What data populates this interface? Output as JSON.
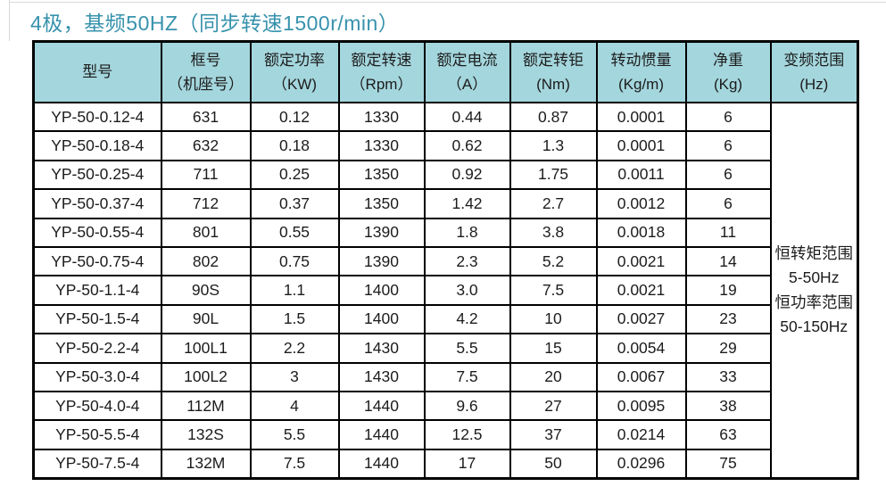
{
  "title": "4极，基频50HZ（同步转速1500r/min）",
  "colors": {
    "title_accent": "#3792ad",
    "header_bg": "#a4d6dd",
    "border": "#000000",
    "cell_text": "#1c1c1c"
  },
  "table": {
    "columns": [
      {
        "key": "model",
        "line1": "型号",
        "line2": ""
      },
      {
        "key": "frame",
        "line1": "框号",
        "line2": "（机座号）"
      },
      {
        "key": "rated-power",
        "line1": "额定功率",
        "line2": "（KW)"
      },
      {
        "key": "rated-speed",
        "line1": "额定转速",
        "line2": "（Rpm）"
      },
      {
        "key": "rated-current",
        "line1": "额定电流",
        "line2": "（A）"
      },
      {
        "key": "rated-torque",
        "line1": "额定转钜",
        "line2": "(Nm)"
      },
      {
        "key": "inertia",
        "line1": "转动惯量",
        "line2": "(Kg/m)"
      },
      {
        "key": "net-weight",
        "line1": "净重",
        "line2": "(Kg)"
      },
      {
        "key": "freq-range",
        "line1": "变频范围",
        "line2": "(Hz)"
      }
    ],
    "rows": [
      [
        "YP-50-0.12-4",
        "631",
        "0.12",
        "1330",
        "0.44",
        "0.87",
        "0.0001",
        "6"
      ],
      [
        "YP-50-0.18-4",
        "632",
        "0.18",
        "1330",
        "0.62",
        "1.3",
        "0.0001",
        "6"
      ],
      [
        "YP-50-0.25-4",
        "711",
        "0.25",
        "1350",
        "0.92",
        "1.75",
        "0.0011",
        "6"
      ],
      [
        "YP-50-0.37-4",
        "712",
        "0.37",
        "1350",
        "1.42",
        "2.7",
        "0.0012",
        "6"
      ],
      [
        "YP-50-0.55-4",
        "801",
        "0.55",
        "1390",
        "1.8",
        "3.8",
        "0.0018",
        "11"
      ],
      [
        "YP-50-0.75-4",
        "802",
        "0.75",
        "1390",
        "2.3",
        "5.2",
        "0.0021",
        "14"
      ],
      [
        "YP-50-1.1-4",
        "90S",
        "1.1",
        "1400",
        "3.0",
        "7.5",
        "0.0021",
        "19"
      ],
      [
        "YP-50-1.5-4",
        "90L",
        "1.5",
        "1400",
        "4.2",
        "10",
        "0.0027",
        "23"
      ],
      [
        "YP-50-2.2-4",
        "100L1",
        "2.2",
        "1430",
        "5.5",
        "15",
        "0.0054",
        "29"
      ],
      [
        "YP-50-3.0-4",
        "100L2",
        "3",
        "1430",
        "7.5",
        "20",
        "0.0067",
        "33"
      ],
      [
        "YP-50-4.0-4",
        "112M",
        "4",
        "1440",
        "9.6",
        "27",
        "0.0095",
        "38"
      ],
      [
        "YP-50-5.5-4",
        "132S",
        "5.5",
        "1440",
        "12.5",
        "37",
        "0.0214",
        "63"
      ],
      [
        "YP-50-7.5-4",
        "132M",
        "7.5",
        "1440",
        "17",
        "50",
        "0.0296",
        "75"
      ]
    ],
    "freq_range_lines": [
      "恒转矩范围",
      "5-50Hz",
      "恒功率范围",
      "50-150Hz"
    ]
  }
}
